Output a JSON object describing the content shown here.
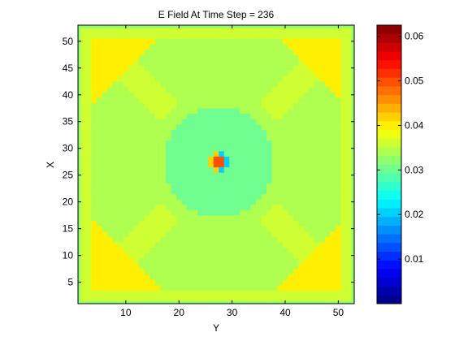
{
  "chart_data": {
    "type": "heatmap",
    "title": "E Field At Time Step = 236",
    "xlabel": "Y",
    "ylabel": "X",
    "xlim": [
      1,
      53
    ],
    "ylim": [
      1,
      53
    ],
    "x_ticks": [
      "10",
      "20",
      "30",
      "40",
      "50"
    ],
    "y_ticks": [
      "5",
      "10",
      "15",
      "20",
      "25",
      "30",
      "35",
      "40",
      "45",
      "50"
    ],
    "grid": false,
    "colorbar": {
      "clim": [
        0,
        0.0625
      ],
      "ticks": [
        "0.01",
        "0.02",
        "0.03",
        "0.04",
        "0.05",
        "0.06"
      ],
      "colormap": "jet",
      "levels": 32
    },
    "description_levels": {
      "background": 0.033,
      "outer_band": 0.037,
      "diagonal_band": 0.036,
      "corner_regions": 0.04,
      "ring": 0.034,
      "center_disk": 0.031,
      "center_peak": 0.05,
      "center_dip": 0.02
    }
  }
}
